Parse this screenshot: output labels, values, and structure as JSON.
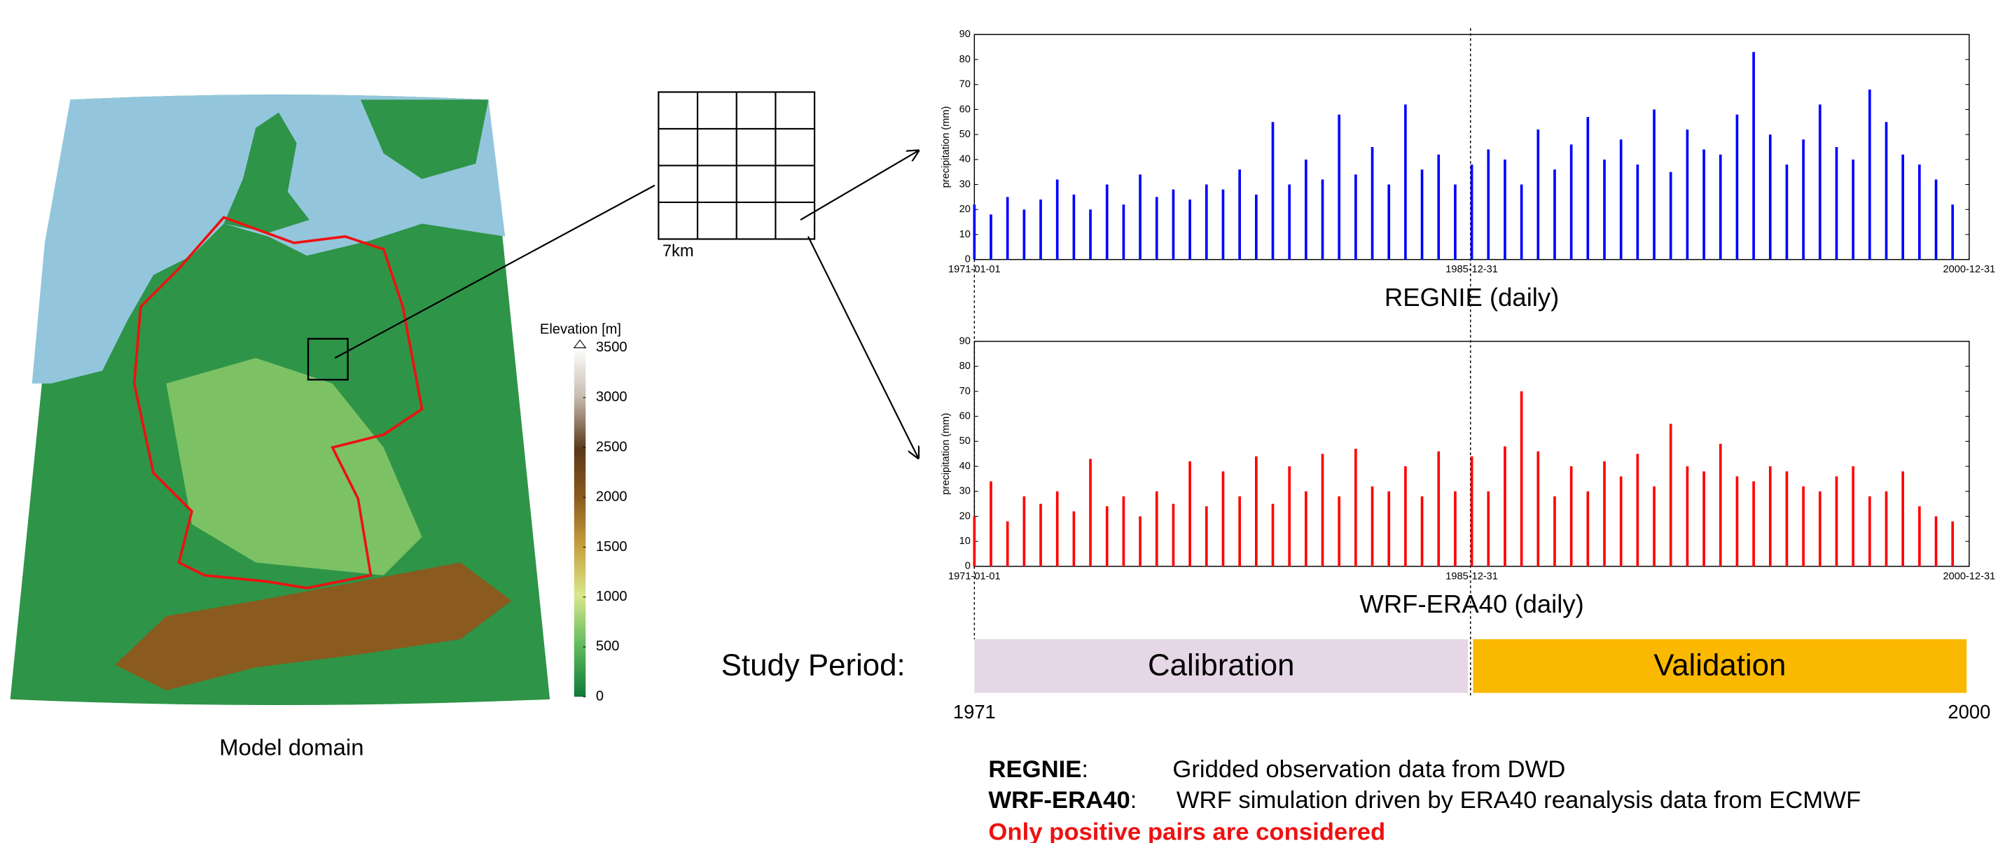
{
  "map": {
    "title": "Elevation [m]",
    "colorbar_ticks": [
      0,
      500,
      1000,
      1500,
      2000,
      2500,
      3000,
      3500
    ],
    "caption": "Model domain",
    "cell_label": "7km"
  },
  "chart_data": [
    {
      "type": "bar",
      "title": "REGNIE (daily)",
      "ylabel": "precipitation (mm)",
      "color": "#0000ff",
      "x": [
        1971,
        1971.5,
        1972,
        1972.5,
        1973,
        1973.5,
        1974,
        1974.5,
        1975,
        1975.5,
        1976,
        1976.5,
        1977,
        1977.5,
        1978,
        1978.5,
        1979,
        1979.5,
        1980,
        1980.5,
        1981,
        1981.5,
        1982,
        1982.5,
        1983,
        1983.5,
        1984,
        1984.5,
        1985,
        1985.5,
        1986,
        1986.5,
        1987,
        1987.5,
        1988,
        1988.5,
        1989,
        1989.5,
        1990,
        1990.5,
        1991,
        1991.5,
        1992,
        1992.5,
        1993,
        1993.5,
        1994,
        1994.5,
        1995,
        1995.5,
        1996,
        1996.5,
        1997,
        1997.5,
        1998,
        1998.5,
        1999,
        1999.5,
        2000,
        2000.5
      ],
      "values": [
        22,
        18,
        25,
        20,
        24,
        32,
        26,
        20,
        30,
        22,
        34,
        25,
        28,
        24,
        30,
        28,
        36,
        26,
        55,
        30,
        40,
        32,
        58,
        34,
        45,
        30,
        62,
        36,
        42,
        30,
        38,
        44,
        40,
        30,
        52,
        36,
        46,
        57,
        40,
        48,
        38,
        60,
        35,
        52,
        44,
        42,
        58,
        83,
        50,
        38,
        48,
        62,
        45,
        40,
        68,
        55,
        42,
        38,
        32,
        22
      ],
      "xlim": [
        1971,
        2001
      ],
      "ylim": [
        0,
        90
      ],
      "xticks": [
        {
          "value": 1971,
          "label": "1971-01-01"
        },
        {
          "value": 1986,
          "label": "1985-12-31"
        },
        {
          "value": 2001,
          "label": "2000-12-31"
        }
      ],
      "yticks": [
        0,
        10,
        20,
        30,
        40,
        50,
        60,
        70,
        80,
        90
      ]
    },
    {
      "type": "bar",
      "title": "WRF-ERA40 (daily)",
      "ylabel": "precipitation (mm)",
      "color": "#ff0000",
      "x": [
        1971,
        1971.5,
        1972,
        1972.5,
        1973,
        1973.5,
        1974,
        1974.5,
        1975,
        1975.5,
        1976,
        1976.5,
        1977,
        1977.5,
        1978,
        1978.5,
        1979,
        1979.5,
        1980,
        1980.5,
        1981,
        1981.5,
        1982,
        1982.5,
        1983,
        1983.5,
        1984,
        1984.5,
        1985,
        1985.5,
        1986,
        1986.5,
        1987,
        1987.5,
        1988,
        1988.5,
        1989,
        1989.5,
        1990,
        1990.5,
        1991,
        1991.5,
        1992,
        1992.5,
        1993,
        1993.5,
        1994,
        1994.5,
        1995,
        1995.5,
        1996,
        1996.5,
        1997,
        1997.5,
        1998,
        1998.5,
        1999,
        1999.5,
        2000,
        2000.5
      ],
      "values": [
        20,
        34,
        18,
        28,
        25,
        30,
        22,
        43,
        24,
        28,
        20,
        30,
        25,
        42,
        24,
        38,
        28,
        44,
        25,
        40,
        30,
        45,
        28,
        47,
        32,
        30,
        40,
        28,
        46,
        30,
        44,
        30,
        48,
        70,
        46,
        28,
        40,
        30,
        42,
        36,
        45,
        32,
        57,
        40,
        38,
        49,
        36,
        34,
        40,
        38,
        32,
        30,
        36,
        40,
        28,
        30,
        38,
        24,
        20,
        18
      ],
      "xlim": [
        1971,
        2001
      ],
      "ylim": [
        0,
        90
      ],
      "xticks": [
        {
          "value": 1971,
          "label": "1971-01-01"
        },
        {
          "value": 1986,
          "label": "1985-12-31"
        },
        {
          "value": 2001,
          "label": "2000-12-31"
        }
      ],
      "yticks": [
        0,
        10,
        20,
        30,
        40,
        50,
        60,
        70,
        80,
        90
      ]
    }
  ],
  "study_period": {
    "label": "Study Period:",
    "segments": [
      {
        "name": "Calibration",
        "color": "#e6d7e7"
      },
      {
        "name": "Validation",
        "color": "#fbb800"
      }
    ],
    "start": "1971",
    "end": "2000"
  },
  "notes": {
    "rows": [
      {
        "term": "REGNIE",
        "sep": ":",
        "desc": "Gridded observation data from DWD"
      },
      {
        "term": "WRF-ERA40",
        "sep": ":",
        "desc": "WRF simulation driven by ERA40 reanalysis data from ECMWF"
      }
    ],
    "warning": "Only positive pairs are considered"
  }
}
